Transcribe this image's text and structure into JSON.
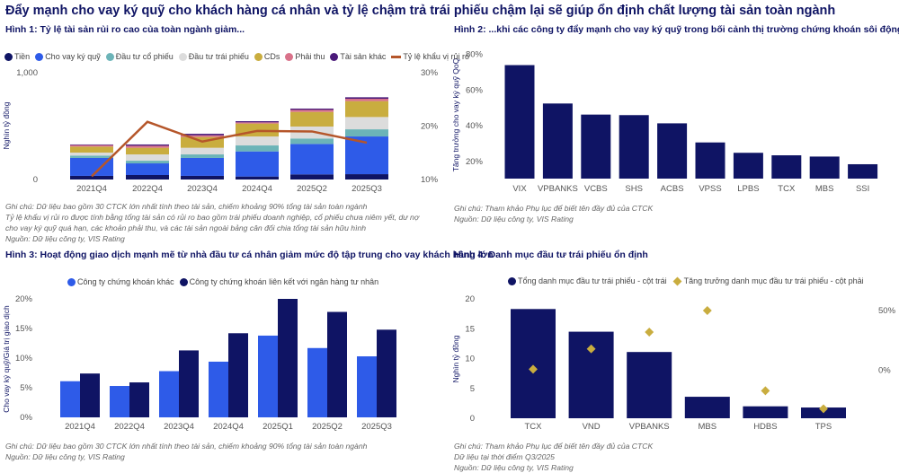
{
  "page_title": "Đẩy mạnh cho vay ký quỹ cho khách hàng cá nhân và tỷ lệ chậm trả trái phiếu chậm lại sẽ giúp ổn định chất lượng tài sản toàn ngành",
  "colors": {
    "navy": "#0f1464",
    "blue": "#2e5be8",
    "teal": "#6cb4b8",
    "grey": "#dcdcdc",
    "cds": "#c9ad3f",
    "receivable": "#d9728a",
    "other": "#4b1a7a",
    "line": "#b5562a"
  },
  "chart_data": [
    {
      "id": "fig1",
      "type": "bar",
      "stacked": true,
      "title": "Hình 1: Tỷ lệ tài sản rủi ro cao của toàn ngành giảm...",
      "ylabel": "Nghìn tỷ đồng",
      "ylim": [
        0,
        1000
      ],
      "yticks": [
        "0",
        "1,000"
      ],
      "y2lim": [
        10,
        30
      ],
      "y2ticks": [
        "10%",
        "20%",
        "30%"
      ],
      "categories": [
        "2021Q4",
        "2022Q4",
        "2023Q4",
        "2024Q4",
        "2025Q2",
        "2025Q3"
      ],
      "series": [
        {
          "name": "Tiền",
          "color": "#0f1464",
          "values": [
            34,
            42,
            34,
            28,
            48,
            50
          ]
        },
        {
          "name": "Cho vay ký quỹ",
          "color": "#2e5be8",
          "values": [
            168,
            109,
            168,
            235,
            285,
            353
          ]
        },
        {
          "name": "Đầu tư cổ phiếu",
          "color": "#6cb4b8",
          "values": [
            22,
            25,
            33,
            56,
            51,
            67
          ]
        },
        {
          "name": "Đầu tư trái phiếu",
          "color": "#dcdcdc",
          "values": [
            28,
            59,
            62,
            84,
            112,
            115
          ]
        },
        {
          "name": "CDs",
          "color": "#c9ad3f",
          "values": [
            56,
            62,
            101,
            121,
            137,
            149
          ]
        },
        {
          "name": "Phải thu",
          "color": "#d9728a",
          "values": [
            14,
            19,
            16,
            11,
            19,
            22
          ]
        },
        {
          "name": "Tài sản khác",
          "color": "#4b1a7a",
          "values": [
            6,
            12,
            14,
            11,
            12,
            14
          ]
        }
      ],
      "line": {
        "name": "Tỷ lệ khẩu vị rủi ro",
        "color": "#b5562a",
        "axis": "right",
        "values": [
          10.6,
          20.8,
          17.1,
          19.1,
          19.0,
          16.9
        ]
      },
      "notes": [
        "Ghi chú:  Dữ liệu bao gồm 30 CTCK lớn nhất tính theo tài sản, chiếm khoảng 90% tổng tài sản toàn ngành",
        "Tỷ lệ khẩu vị rủi ro được tính bằng tổng tài sản có rủi ro bao gồm trái phiếu doanh nghiệp, cổ phiếu chưa niêm yết, dư nợ",
        "cho vay ký quỹ quá hạn, các khoản phải thu, và các tài sản ngoài bảng cân đối chia tổng tài sản hữu hình",
        "Nguồn: Dữ liệu công ty, VIS Rating"
      ]
    },
    {
      "id": "fig2",
      "type": "bar",
      "title": "Hình 2: ...khi các công ty đẩy mạnh cho vay ký quỹ trong bối cảnh thị trường chứng khoán sôi động",
      "ylabel": "Tăng trưởng cho vay ký quỹ QoQ",
      "ylim": [
        10,
        80
      ],
      "yticks": [
        "20%",
        "40%",
        "60%",
        "80%"
      ],
      "categories": [
        "VIX",
        "VPBANKS",
        "VCBS",
        "SHS",
        "ACBS",
        "VPSS",
        "LPBS",
        "TCX",
        "MBS",
        "SSI"
      ],
      "values": [
        74,
        52.5,
        46.3,
        46,
        41.4,
        30.7,
        24.9,
        23.5,
        22.8,
        18.5
      ],
      "notes": [
        "Ghi chú: Tham khảo Phụ lục để biết tên đầy đủ của CTCK",
        "Nguồn: Dữ liệu công ty, VIS Rating"
      ]
    },
    {
      "id": "fig3",
      "type": "bar",
      "title": "Hình 3: Hoạt động giao dịch mạnh mẽ từ nhà đầu tư cá nhân giảm mức độ tập trung cho vay khách hàng lớn",
      "ylabel": "Cho vay ký quỹ/Giá trị giao dịch",
      "ylim": [
        0,
        20
      ],
      "yticks": [
        "0%",
        "5%",
        "10%",
        "15%",
        "20%"
      ],
      "categories": [
        "2021Q4",
        "2022Q4",
        "2023Q4",
        "2024Q4",
        "2025Q1",
        "2025Q2",
        "2025Q3"
      ],
      "series": [
        {
          "name": "Công ty chứng khoán khác",
          "color": "#2e5be8",
          "values": [
            6.1,
            5.3,
            7.8,
            9.4,
            13.8,
            11.7,
            10.3
          ]
        },
        {
          "name": "Công ty chứng khoán liên kết với ngân hàng tư nhân",
          "color": "#0f1464",
          "values": [
            7.4,
            5.9,
            11.3,
            14.2,
            20.0,
            17.8,
            14.8
          ]
        }
      ],
      "notes": [
        "Ghi chú:  Dữ liệu bao gồm 30 CTCK lớn nhất tính theo tài sản, chiếm khoảng 90% tổng tài sản toàn ngành",
        "Nguồn: Dữ liệu công ty, VIS Rating"
      ]
    },
    {
      "id": "fig4",
      "type": "bar",
      "title": "Hình 4: Danh mục đầu tư trái phiếu ổn định",
      "ylabel": "Nghìn tỷ đồng",
      "ylim": [
        0,
        20
      ],
      "yticks": [
        "0",
        "5",
        "10",
        "15",
        "20"
      ],
      "y2lim": [
        -50,
        50
      ],
      "y2ticks": [
        "0%",
        "50%"
      ],
      "categories": [
        "TCX",
        "VND",
        "VPBANKS",
        "MBS",
        "HDBS",
        "TPS"
      ],
      "series": [
        {
          "name": "Tổng danh mục đầu tư trái phiếu - cột trái",
          "color": "#0f1464",
          "values": [
            18.3,
            14.5,
            11.1,
            3.6,
            2.0,
            1.8
          ]
        },
        {
          "name": "Tăng trưởng danh mục đầu tư trái phiếu - cột phải",
          "color": "#c9ad3f",
          "marker": "diamond",
          "values": [
            1,
            18,
            32,
            50,
            -17,
            -32
          ]
        }
      ],
      "notes": [
        "Ghi chú: Tham khảo Phụ lục để biết tên đầy đủ của CTCK",
        "Dữ liệu tại thời điểm Q3/2025",
        "Nguồn: Dữ liệu công ty, VIS Rating"
      ]
    }
  ]
}
